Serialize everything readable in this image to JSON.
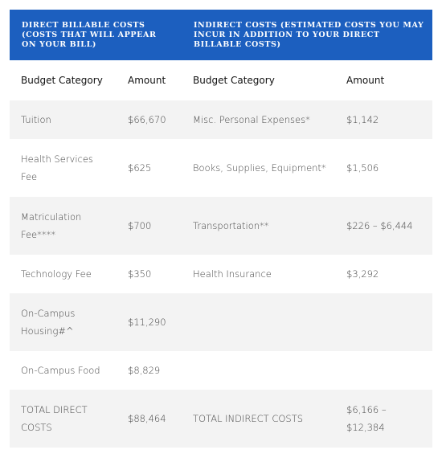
{
  "table": {
    "groups": [
      "Direct Billable Costs (Costs that will appear on your bill)",
      "Indirect Costs (Estimated costs you may incur in addition to your direct billable costs)"
    ],
    "columns": [
      "Budget Category",
      "Amount",
      "Budget Category",
      "Amount"
    ],
    "rows": [
      [
        "Tuition",
        "$66,670",
        "Misc. Personal Expenses*",
        "$1,142"
      ],
      [
        "Health Services Fee",
        "$625",
        "Books, Supplies, Equipment*",
        "$1,506"
      ],
      [
        "Matriculation Fee****",
        "$700",
        "Transportation**",
        "$226 – $6,444"
      ],
      [
        "Technology Fee",
        "$350",
        "Health Insurance",
        "$3,292"
      ],
      [
        "On-Campus Housing#^",
        "$11,290",
        null,
        null
      ],
      [
        "On-Campus Food",
        "$8,829",
        null,
        null
      ],
      [
        "TOTAL DIRECT COSTS",
        "$88,464",
        "TOTAL INDIRECT COSTS",
        "$6,166 – $12,384"
      ]
    ]
  }
}
